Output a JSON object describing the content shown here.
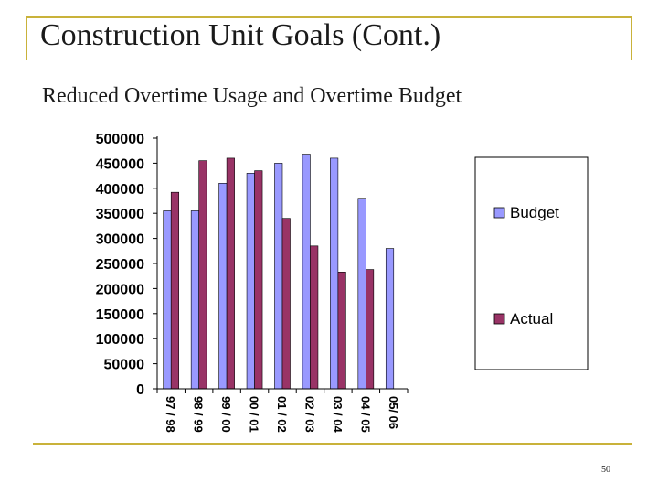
{
  "slide": {
    "title": "Construction Unit Goals (Cont.)",
    "subtitle": "Reduced Overtime Usage and Overtime Budget",
    "page_number": "50"
  },
  "colors": {
    "budget": "#9999ff",
    "actual": "#993366",
    "accent_border": "#c9b23a",
    "axis": "#000000"
  },
  "chart_data": {
    "type": "bar",
    "categories": [
      "97 / 98",
      "98 / 99",
      "99 / 00",
      "00 / 01",
      "01 / 02",
      "02 / 03",
      "03 / 04",
      "04 / 05",
      "05/ 06"
    ],
    "series": [
      {
        "name": "Budget",
        "values": [
          355000,
          355000,
          410000,
          430000,
          450000,
          468000,
          460000,
          380000,
          280000
        ]
      },
      {
        "name": "Actual",
        "values": [
          392000,
          455000,
          460000,
          435000,
          340000,
          285000,
          233000,
          238000,
          null
        ]
      }
    ],
    "yticks": [
      "500000",
      "450000",
      "400000",
      "350000",
      "300000",
      "250000",
      "200000",
      "150000",
      "100000",
      "50000",
      "0"
    ],
    "ylim": [
      0,
      500000
    ],
    "grid": false,
    "legend_position": "right"
  }
}
